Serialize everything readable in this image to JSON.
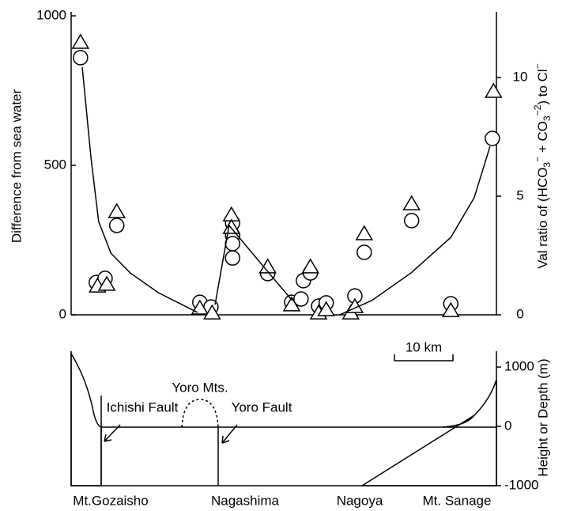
{
  "chart_data": [
    {
      "type": "scatter",
      "ylabel": "Difference from sea water",
      "y2label_parts": [
        "Val ratio of (HCO",
        "3",
        "−",
        " + CO",
        "3",
        "−2",
        ") to Cl",
        "−"
      ],
      "xlim": [
        0,
        72.7
      ],
      "ylim": [
        0,
        1000
      ],
      "yticks": [
        0,
        500,
        1000
      ],
      "y2lim": [
        0,
        12.6
      ],
      "y2ticks": [
        0,
        5,
        10
      ],
      "scale_bar": "10 km",
      "series": [
        {
          "marker": "circle",
          "color": "#000000",
          "x": [
            1.6,
            7.8,
            4.3,
            5.8,
            22.0,
            23.9,
            27.6,
            27.6,
            27.6,
            27.6,
            33.6,
            37.7,
            39.3,
            39.7,
            40.9,
            42.3,
            43.6,
            48.5,
            50.1,
            58.2,
            64.9,
            72.0
          ],
          "values": [
            860,
            299,
            108,
            122,
            42,
            26,
            307,
            265,
            238,
            190,
            138,
            42,
            53,
            114,
            140,
            29,
            40,
            63,
            209,
            315,
            37,
            590
          ]
        },
        {
          "marker": "triangle",
          "color": "#000000",
          "x": [
            1.6,
            7.8,
            4.5,
            6.1,
            22.0,
            24.1,
            27.4,
            27.4,
            33.6,
            37.7,
            40.9,
            42.3,
            43.6,
            47.8,
            48.5,
            50.1,
            58.2,
            64.9,
            72.2
          ],
          "values": [
            910,
            344,
            95,
            101,
            21,
            5,
            333,
            291,
            159,
            32,
            159,
            5,
            16,
            5,
            26,
            270,
            370,
            13,
            746
          ]
        },
        {
          "marker": "line",
          "color": "#000000",
          "x": [
            1.9,
            3.4,
            4.7,
            6.8,
            10.1,
            14.9,
            21.6,
            null,
            24.6,
            27.0,
            33.8,
            37.8,
            null,
            45.9,
            51.4,
            58.1,
            64.9,
            68.9,
            71.6
          ],
          "values": [
            828,
            524,
            312,
            206,
            140,
            74,
            8,
            null,
            34,
            299,
            140,
            48,
            null,
            0,
            48,
            140,
            259,
            392,
            563
          ]
        }
      ]
    },
    {
      "type": "section",
      "y2label": "Height or Depth (m)",
      "y2lim": [
        -1000,
        1267
      ],
      "y2ticks": [
        -1000,
        0,
        1000
      ],
      "places": [
        "Mt.Gozaisho",
        "Nagashima",
        "Nagoya",
        "Mt. Sanage"
      ],
      "annotations": [
        "Yoro Mts.",
        "Ichishi Fault",
        "Yoro Fault"
      ]
    }
  ]
}
